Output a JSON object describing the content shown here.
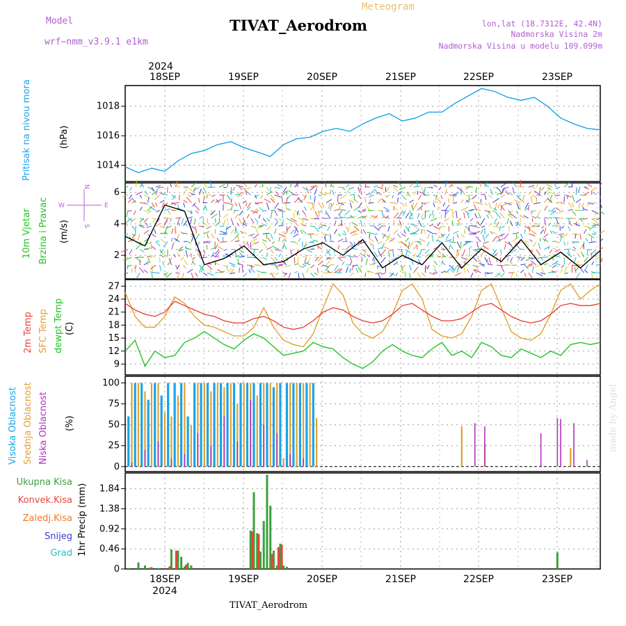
{
  "header": {
    "model_label": "Model",
    "model_name": "wrf−nmm_v3.9.1  e1km",
    "meteogram_label": "Meteogram",
    "station_title": "TIVAT_Aerodrom",
    "location": "lon,lat (18.7312E, 42.4N)",
    "elevation": "Nadmorska Visina 2m",
    "model_elevation": "Nadmorska Visina u modelu 109.099m",
    "watermark": "made by Angel",
    "footer_station": "TIVAT_Aerodrom"
  },
  "colors": {
    "pressure": "#1aa3e8",
    "t2m": "#e8453c",
    "sfc": "#e0a030",
    "dew": "#22c322",
    "cloud_high": "#1aa3e8",
    "cloud_mid": "#e0a030",
    "cloud_low": "#b030c0",
    "precip_total": "#3aa03a",
    "precip_conv": "#e8453c",
    "precip_strat": "#ee7a2a",
    "snow": "#3a3ad0",
    "graupel": "#20c0c0",
    "purple_text": "#b060d0",
    "gold_text": "#e8c070"
  },
  "chart_data": [
    {
      "type": "line",
      "panel": "pressure",
      "ylabel_title": "Pritisak na nivou mora",
      "ylabel_unit": "(hPa)",
      "ylim": [
        1012.9,
        1019.4
      ],
      "yticks": [
        "1014",
        "1016",
        "1018"
      ],
      "grid": true,
      "series": [
        {
          "x": [
            0,
            4,
            8,
            12,
            16,
            20,
            24,
            28,
            32,
            36,
            40,
            44,
            48,
            52,
            56,
            60,
            64,
            68,
            72,
            76,
            80,
            84,
            88,
            92,
            96,
            100,
            104,
            108,
            112,
            116,
            120,
            124,
            128,
            132,
            136,
            140,
            144
          ],
          "values": [
            1013.9,
            1013.5,
            1013.8,
            1013.6,
            1014.3,
            1014.8,
            1015.0,
            1015.4,
            1015.6,
            1015.2,
            1014.9,
            1014.6,
            1015.4,
            1015.8,
            1015.9,
            1016.3,
            1016.5,
            1016.3,
            1016.8,
            1017.2,
            1017.5,
            1017.0,
            1017.2,
            1017.6,
            1017.6,
            1018.2,
            1018.7,
            1019.2,
            1019.0,
            1018.6,
            1018.4,
            1018.6,
            1018.0,
            1017.2,
            1016.8,
            1016.5,
            1016.4
          ]
        }
      ]
    },
    {
      "type": "line",
      "panel": "wind",
      "ylabel_title": "10m Vjetar",
      "ylabel_title2": "Brzina i Pravac",
      "ylabel_unit": "(m/s)",
      "compass": {
        "n": "N",
        "s": "S",
        "e": "E",
        "w": "W"
      },
      "ylim": [
        0.5,
        6.6
      ],
      "yticks": [
        "2",
        "4",
        "6"
      ],
      "grid": true,
      "series": [
        {
          "name": "",
          "x": [
            0,
            6,
            12,
            18,
            24,
            30,
            36,
            42,
            48,
            54,
            60,
            66,
            72,
            78,
            84,
            90,
            96,
            102,
            108,
            114,
            120,
            126,
            132,
            138,
            144
          ],
          "values": [
            3.2,
            2.6,
            5.2,
            4.8,
            1.4,
            1.8,
            2.6,
            1.4,
            1.6,
            2.4,
            2.8,
            2.0,
            3.0,
            1.2,
            2.0,
            1.4,
            2.8,
            1.2,
            2.4,
            1.6,
            3.0,
            1.4,
            2.2,
            1.2,
            2.3
          ]
        }
      ]
    },
    {
      "type": "line",
      "panel": "temperature",
      "ylabel_t2m": "2m Temp",
      "ylabel_sfc": "SFC Temp",
      "ylabel_dew": "dewpt Temp",
      "ylabel_unit": "(C)",
      "ylim": [
        6.5,
        28.5
      ],
      "yticks": [
        "9",
        "12",
        "15",
        "18",
        "21",
        "24",
        "27"
      ],
      "grid": true,
      "series": [
        {
          "name": "2m Temp",
          "x": [
            0,
            3,
            6,
            9,
            12,
            15,
            18,
            21,
            24,
            27,
            30,
            33,
            36,
            39,
            42,
            45,
            48,
            51,
            54,
            57,
            60,
            63,
            66,
            69,
            72,
            75,
            78,
            81,
            84,
            87,
            90,
            93,
            96,
            99,
            102,
            105,
            108,
            111,
            114,
            117,
            120,
            123,
            126,
            129,
            132,
            135,
            138,
            141,
            144
          ],
          "values": [
            23.0,
            21.5,
            20.5,
            20.0,
            21.0,
            23.5,
            22.5,
            21.5,
            20.5,
            20.0,
            19.0,
            18.5,
            18.5,
            19.5,
            20.0,
            19.0,
            17.5,
            17.0,
            17.5,
            19.0,
            21.0,
            22.0,
            21.5,
            20.0,
            19.0,
            18.5,
            19.0,
            20.5,
            22.5,
            23.0,
            21.5,
            20.0,
            19.0,
            19.0,
            19.5,
            21.0,
            22.5,
            23.0,
            21.5,
            20.0,
            19.0,
            18.5,
            19.0,
            20.5,
            22.5,
            23.0,
            22.5,
            22.5,
            23.0
          ]
        },
        {
          "name": "SFC Temp",
          "x": [
            0,
            3,
            6,
            9,
            12,
            15,
            18,
            21,
            24,
            27,
            30,
            33,
            36,
            39,
            42,
            45,
            48,
            51,
            54,
            57,
            60,
            63,
            66,
            69,
            72,
            75,
            78,
            81,
            84,
            87,
            90,
            93,
            96,
            99,
            102,
            105,
            108,
            111,
            114,
            117,
            120,
            123,
            126,
            129,
            132,
            135,
            138,
            141,
            144
          ],
          "values": [
            25.5,
            20.0,
            17.5,
            17.5,
            20.0,
            24.5,
            23.0,
            20.0,
            18.0,
            17.5,
            16.5,
            15.5,
            15.5,
            17.5,
            22.0,
            17.5,
            14.5,
            13.5,
            13.0,
            16.0,
            22.0,
            27.5,
            25.0,
            18.5,
            16.0,
            15.0,
            16.5,
            20.5,
            26.0,
            27.5,
            24.0,
            17.0,
            15.5,
            15.0,
            16.0,
            20.0,
            26.0,
            27.5,
            22.0,
            16.5,
            15.0,
            14.5,
            16.0,
            20.5,
            26.0,
            27.5,
            24.0,
            26.0,
            27.5
          ]
        },
        {
          "name": "dewpt Temp",
          "x": [
            0,
            3,
            6,
            9,
            12,
            15,
            18,
            21,
            24,
            27,
            30,
            33,
            36,
            39,
            42,
            45,
            48,
            51,
            54,
            57,
            60,
            63,
            66,
            69,
            72,
            75,
            78,
            81,
            84,
            87,
            90,
            93,
            96,
            99,
            102,
            105,
            108,
            111,
            114,
            117,
            120,
            123,
            126,
            129,
            132,
            135,
            138,
            141,
            144
          ],
          "values": [
            12.0,
            14.5,
            8.5,
            12.0,
            10.5,
            11.0,
            14.0,
            15.0,
            16.5,
            15.0,
            13.5,
            12.5,
            14.5,
            16.0,
            15.0,
            13.0,
            11.0,
            11.5,
            12.0,
            14.0,
            13.0,
            12.5,
            10.5,
            9.0,
            8.0,
            9.5,
            12.0,
            13.5,
            12.0,
            11.0,
            10.5,
            12.5,
            14.0,
            11.0,
            12.0,
            10.5,
            14.0,
            13.0,
            11.0,
            10.5,
            12.5,
            11.5,
            10.5,
            12.0,
            11.0,
            13.5,
            14.0,
            13.5,
            14.0
          ]
        }
      ]
    },
    {
      "type": "bar",
      "panel": "clouds",
      "ylabel_high": "Visoka Oblacnost",
      "ylabel_mid": "Srednja Oblacnost",
      "ylabel_low": "Niska Oblacnost",
      "ylabel_unit": "(%)",
      "ylim": [
        -6,
        108
      ],
      "yticks": [
        "0",
        "25",
        "50",
        "75",
        "100"
      ],
      "grid": true,
      "series": [
        {
          "name": "Visoka Oblacnost",
          "x": [
            1,
            3,
            5,
            7,
            9,
            11,
            13,
            15,
            17,
            19,
            21,
            23,
            25,
            27,
            29,
            31,
            33,
            35,
            37,
            39,
            41,
            43,
            45,
            47,
            49,
            51,
            53,
            55,
            57
          ],
          "values": [
            60,
            100,
            100,
            80,
            100,
            85,
            100,
            100,
            100,
            60,
            100,
            100,
            100,
            100,
            100,
            100,
            100,
            100,
            100,
            100,
            100,
            100,
            95,
            100,
            100,
            100,
            100,
            100,
            100
          ]
        },
        {
          "name": "Srednja Oblacnost",
          "x": [
            2,
            4,
            6,
            8,
            10,
            12,
            14,
            16,
            18,
            20,
            22,
            24,
            26,
            28,
            30,
            32,
            34,
            36,
            38,
            40,
            42,
            44,
            46,
            48,
            50,
            52,
            54,
            56,
            58,
            102,
            109,
            135
          ],
          "values": [
            100,
            100,
            90,
            100,
            100,
            65,
            60,
            85,
            100,
            50,
            100,
            100,
            90,
            100,
            95,
            100,
            75,
            100,
            100,
            85,
            100,
            100,
            100,
            10,
            100,
            100,
            100,
            100,
            58,
            48,
            28,
            22
          ]
        },
        {
          "name": "Niska Oblacnost",
          "x": [
            2,
            6,
            10,
            14,
            18,
            22,
            26,
            30,
            34,
            38,
            42,
            46,
            50,
            54,
            106,
            109,
            126,
            131,
            132,
            136,
            140
          ],
          "values": [
            5,
            20,
            30,
            10,
            15,
            40,
            25,
            60,
            30,
            80,
            50,
            40,
            15,
            10,
            52,
            48,
            40,
            58,
            57,
            52,
            8
          ]
        }
      ]
    },
    {
      "type": "bar",
      "panel": "precip",
      "legend": [
        "Ukupna Kisa",
        "Konvek.Kisa",
        "Zaledj.Kisa",
        "Snijeg",
        "Grad"
      ],
      "ylabel": "1hr Precip (mm)",
      "ylim": [
        0,
        2.2
      ],
      "yticks": [
        "0",
        "0.46",
        "0.92",
        "1.38",
        "1.84"
      ],
      "grid": true,
      "series": [
        {
          "name": "Ukupna Kisa",
          "x": [
            1,
            4,
            6,
            8,
            10,
            14,
            16,
            17,
            18,
            19,
            20,
            38,
            39,
            40,
            41,
            42,
            43,
            44,
            45,
            46,
            47,
            48,
            49,
            131
          ],
          "values": [
            0.02,
            0.15,
            0.08,
            0.04,
            0.02,
            0.45,
            0.42,
            0.28,
            0.06,
            0.14,
            0.08,
            0.88,
            1.76,
            0.82,
            0.4,
            1.1,
            2.16,
            1.45,
            0.42,
            0.08,
            0.58,
            0.08,
            0.05,
            0.38
          ]
        },
        {
          "name": "Konvek.Kisa",
          "x": [
            7,
            13,
            15,
            18,
            38,
            40,
            44,
            46,
            47
          ],
          "values": [
            0.03,
            0.06,
            0.42,
            0.1,
            0.86,
            0.8,
            0.34,
            0.5,
            0.56
          ]
        }
      ]
    }
  ],
  "axis": {
    "year": "2024",
    "top_labels": [
      "18SEP",
      "19SEP",
      "20SEP",
      "21SEP",
      "22SEP",
      "23SEP"
    ],
    "bottom_labels": [
      "18SEP",
      "19SEP",
      "20SEP",
      "21SEP",
      "22SEP",
      "23SEP"
    ]
  }
}
